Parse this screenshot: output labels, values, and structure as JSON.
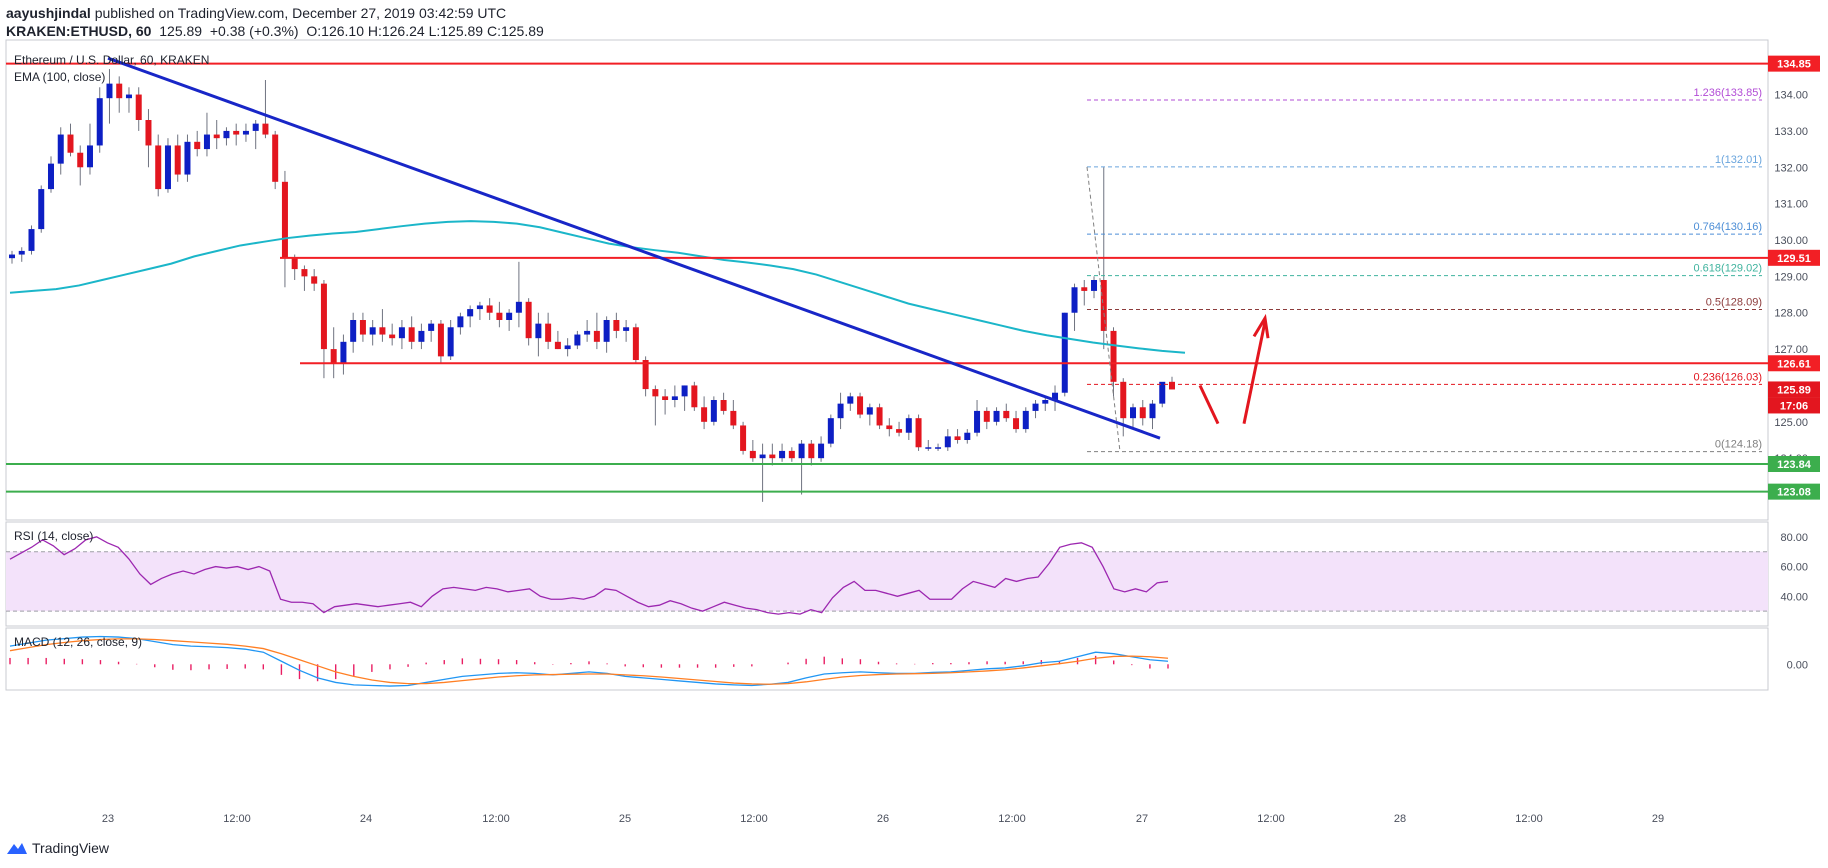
{
  "header": {
    "line1_user": "aayushjindal",
    "line1_rest": " published on TradingView.com, December 27, 2019 03:42:59 UTC",
    "symbol": "KRAKEN:ETHUSD, 60",
    "price": "125.89",
    "change": "+0.38 (+0.3%)",
    "ohlc": "O:126.10 H:126.24 L:125.89 C:125.89"
  },
  "footer": {
    "brand": "TradingView"
  },
  "colors": {
    "up": "#0d1fc4",
    "down": "#e3161f",
    "ema": "#1bb6c9",
    "trend": "#1826c7",
    "hline_red": "#f21f25",
    "hline_green": "#3cae4d",
    "rsi": "#9c27b0",
    "rsi_band": "#f3e2fa",
    "macd": "#2196f3",
    "signal": "#ff7f24",
    "hist": "#e91e63"
  },
  "chart_data": [
    {
      "type": "candlestick",
      "title": "Ethereum / U.S. Dollar, 60, KRAKEN",
      "indicator_label": "EMA (100, close)",
      "ylim": [
        122.3,
        135.5
      ],
      "y_ticks": [
        "134.00",
        "133.00",
        "132.00",
        "131.00",
        "130.00",
        "129.00",
        "128.00",
        "127.00",
        "126.00",
        "125.00",
        "124.00"
      ],
      "x_ticks": [
        "23",
        "12:00",
        "24",
        "12:00",
        "25",
        "12:00",
        "26",
        "12:00",
        "27",
        "12:00",
        "28",
        "12:00",
        "29"
      ],
      "candles": [
        [
          129.5,
          129.7,
          129.35,
          129.6
        ],
        [
          129.6,
          129.8,
          129.4,
          129.7
        ],
        [
          129.7,
          130.4,
          129.6,
          130.3
        ],
        [
          130.3,
          131.5,
          130.2,
          131.4
        ],
        [
          131.4,
          132.3,
          131.3,
          132.1
        ],
        [
          132.1,
          133.1,
          131.8,
          132.9
        ],
        [
          132.9,
          133.2,
          132.3,
          132.4
        ],
        [
          132.4,
          132.6,
          131.5,
          132.0
        ],
        [
          132.0,
          133.2,
          131.8,
          132.6
        ],
        [
          132.6,
          134.2,
          132.4,
          133.9
        ],
        [
          133.9,
          134.7,
          133.2,
          134.3
        ],
        [
          134.3,
          134.5,
          133.5,
          133.9
        ],
        [
          133.9,
          134.2,
          133.5,
          134.0
        ],
        [
          134.0,
          134.2,
          133.0,
          133.3
        ],
        [
          133.3,
          133.6,
          132.0,
          132.6
        ],
        [
          132.6,
          132.9,
          131.2,
          131.4
        ],
        [
          131.4,
          132.8,
          131.3,
          132.6
        ],
        [
          132.6,
          132.9,
          131.6,
          131.8
        ],
        [
          131.8,
          132.9,
          131.6,
          132.7
        ],
        [
          132.7,
          133.0,
          132.3,
          132.5
        ],
        [
          132.5,
          133.5,
          132.3,
          132.9
        ],
        [
          132.9,
          133.3,
          132.5,
          132.8
        ],
        [
          132.8,
          133.1,
          132.6,
          133.0
        ],
        [
          133.0,
          133.2,
          132.6,
          132.9
        ],
        [
          132.9,
          133.2,
          132.7,
          133.0
        ],
        [
          133.0,
          133.3,
          132.5,
          133.2
        ],
        [
          133.2,
          134.4,
          132.8,
          132.9
        ],
        [
          132.9,
          133.0,
          131.4,
          131.6
        ],
        [
          131.6,
          131.9,
          128.7,
          129.5
        ],
        [
          129.5,
          129.6,
          128.9,
          129.2
        ],
        [
          129.2,
          129.3,
          128.6,
          129.0
        ],
        [
          129.0,
          129.2,
          128.6,
          128.8
        ],
        [
          128.8,
          128.9,
          126.2,
          127.0
        ],
        [
          127.0,
          127.6,
          126.2,
          126.6
        ],
        [
          126.6,
          127.4,
          126.3,
          127.2
        ],
        [
          127.2,
          128.0,
          126.9,
          127.8
        ],
        [
          127.8,
          128.0,
          127.2,
          127.4
        ],
        [
          127.4,
          127.8,
          127.1,
          127.6
        ],
        [
          127.6,
          128.1,
          127.2,
          127.4
        ],
        [
          127.4,
          127.7,
          127.1,
          127.3
        ],
        [
          127.3,
          127.8,
          127.0,
          127.6
        ],
        [
          127.6,
          127.9,
          127.0,
          127.2
        ],
        [
          127.2,
          127.7,
          127.0,
          127.5
        ],
        [
          127.5,
          127.8,
          127.2,
          127.7
        ],
        [
          127.7,
          127.8,
          126.6,
          126.8
        ],
        [
          126.8,
          127.8,
          126.7,
          127.6
        ],
        [
          127.6,
          128.0,
          127.4,
          127.9
        ],
        [
          127.9,
          128.2,
          127.6,
          128.1
        ],
        [
          128.1,
          128.3,
          127.8,
          128.2
        ],
        [
          128.2,
          128.4,
          127.8,
          128.0
        ],
        [
          128.0,
          128.3,
          127.6,
          127.8
        ],
        [
          127.8,
          128.1,
          127.5,
          128.0
        ],
        [
          128.0,
          129.4,
          127.6,
          128.3
        ],
        [
          128.3,
          128.4,
          127.1,
          127.3
        ],
        [
          127.3,
          128.0,
          126.8,
          127.7
        ],
        [
          127.7,
          128.0,
          127.0,
          127.2
        ],
        [
          127.2,
          127.5,
          127.0,
          127.0
        ],
        [
          127.0,
          127.3,
          126.8,
          127.1
        ],
        [
          127.1,
          127.5,
          127.0,
          127.4
        ],
        [
          127.4,
          127.8,
          127.2,
          127.5
        ],
        [
          127.5,
          128.0,
          127.0,
          127.2
        ],
        [
          127.2,
          127.9,
          126.9,
          127.8
        ],
        [
          127.8,
          128.0,
          127.3,
          127.5
        ],
        [
          127.5,
          127.8,
          127.2,
          127.6
        ],
        [
          127.6,
          127.7,
          126.6,
          126.7
        ],
        [
          126.7,
          126.8,
          125.7,
          125.9
        ],
        [
          125.9,
          126.0,
          124.9,
          125.7
        ],
        [
          125.7,
          125.9,
          125.2,
          125.6
        ],
        [
          125.6,
          126.0,
          125.4,
          125.7
        ],
        [
          125.7,
          126.0,
          125.3,
          126.0
        ],
        [
          126.0,
          126.1,
          125.3,
          125.4
        ],
        [
          125.4,
          125.7,
          124.8,
          125.0
        ],
        [
          125.0,
          125.7,
          124.9,
          125.6
        ],
        [
          125.6,
          125.8,
          125.2,
          125.3
        ],
        [
          125.3,
          125.6,
          124.8,
          124.9
        ],
        [
          124.9,
          125.0,
          124.1,
          124.2
        ],
        [
          124.2,
          124.5,
          123.9,
          124.0
        ],
        [
          124.0,
          124.4,
          122.8,
          124.1
        ],
        [
          124.1,
          124.4,
          123.8,
          124.0
        ],
        [
          124.0,
          124.4,
          123.9,
          124.2
        ],
        [
          124.2,
          124.3,
          123.9,
          124.0
        ],
        [
          124.0,
          124.5,
          123.0,
          124.4
        ],
        [
          124.4,
          124.5,
          123.8,
          124.0
        ],
        [
          124.0,
          124.6,
          123.9,
          124.4
        ],
        [
          124.4,
          125.2,
          124.3,
          125.1
        ],
        [
          125.1,
          125.8,
          124.8,
          125.5
        ],
        [
          125.5,
          125.8,
          125.3,
          125.7
        ],
        [
          125.7,
          125.8,
          125.1,
          125.2
        ],
        [
          125.2,
          125.5,
          124.9,
          125.4
        ],
        [
          125.4,
          125.5,
          124.8,
          124.9
        ],
        [
          124.9,
          125.1,
          124.6,
          124.8
        ],
        [
          124.8,
          125.0,
          124.6,
          124.7
        ],
        [
          124.7,
          125.2,
          124.5,
          125.1
        ],
        [
          125.1,
          125.2,
          124.2,
          124.3
        ],
        [
          124.3,
          124.5,
          124.2,
          124.3
        ],
        [
          124.3,
          124.4,
          124.2,
          124.3
        ],
        [
          124.3,
          124.8,
          124.2,
          124.6
        ],
        [
          124.6,
          124.8,
          124.4,
          124.5
        ],
        [
          124.5,
          124.8,
          124.4,
          124.7
        ],
        [
          124.7,
          125.6,
          124.6,
          125.3
        ],
        [
          125.3,
          125.4,
          124.8,
          125.0
        ],
        [
          125.0,
          125.4,
          124.9,
          125.3
        ],
        [
          125.3,
          125.5,
          125.0,
          125.1
        ],
        [
          125.1,
          125.3,
          124.7,
          124.8
        ],
        [
          124.8,
          125.4,
          124.7,
          125.3
        ],
        [
          125.3,
          125.6,
          125.1,
          125.5
        ],
        [
          125.5,
          125.7,
          125.3,
          125.6
        ],
        [
          125.6,
          126.0,
          125.3,
          125.8
        ],
        [
          125.8,
          128.0,
          125.7,
          128.0
        ],
        [
          128.0,
          128.8,
          127.5,
          128.7
        ],
        [
          128.7,
          128.9,
          128.2,
          128.6
        ],
        [
          128.6,
          129.0,
          128.4,
          128.9
        ],
        [
          128.9,
          132.0,
          127.0,
          127.5
        ],
        [
          127.5,
          127.6,
          125.7,
          126.1
        ],
        [
          126.1,
          126.2,
          124.6,
          125.1
        ],
        [
          125.1,
          125.5,
          124.8,
          125.4
        ],
        [
          125.4,
          125.6,
          124.9,
          125.1
        ],
        [
          125.1,
          125.6,
          124.8,
          125.5
        ],
        [
          125.5,
          126.0,
          125.4,
          126.1
        ],
        [
          126.1,
          126.24,
          125.89,
          125.89
        ]
      ],
      "ema": [
        128.55,
        128.6,
        128.65,
        128.75,
        128.9,
        129.05,
        129.2,
        129.35,
        129.55,
        129.7,
        129.85,
        129.95,
        130.05,
        130.12,
        130.18,
        130.22,
        130.3,
        130.38,
        130.45,
        130.5,
        130.52,
        130.5,
        130.45,
        130.35,
        130.2,
        130.05,
        129.9,
        129.8,
        129.72,
        129.65,
        129.55,
        129.45,
        129.38,
        129.3,
        129.2,
        129.05,
        128.85,
        128.65,
        128.45,
        128.25,
        128.1,
        127.95,
        127.8,
        127.65,
        127.5,
        127.38,
        127.28,
        127.18,
        127.1,
        127.02,
        126.95,
        126.9
      ],
      "h_levels_red": [
        "134.85",
        "129.51",
        "126.61"
      ],
      "h_levels_green": [
        "123.84",
        "123.08"
      ],
      "fib_levels": [
        {
          "label": "1.236(133.85)",
          "value": 133.85
        },
        {
          "label": "1(132.01)",
          "value": 132.01
        },
        {
          "label": "0.764(130.16)",
          "value": 130.16
        },
        {
          "label": "0.618(129.02)",
          "value": 129.02
        },
        {
          "label": "0.5(128.09)",
          "value": 128.09
        },
        {
          "label": "0.236(126.03)",
          "value": 126.03
        },
        {
          "label": "0(124.18)",
          "value": 124.18
        }
      ],
      "price_labels": [
        {
          "text": "134.85",
          "value": 134.85,
          "color": "#f21f25"
        },
        {
          "text": "129.51",
          "value": 129.51,
          "color": "#f21f25"
        },
        {
          "text": "126.61",
          "value": 126.61,
          "color": "#f21f25"
        },
        {
          "text": "125.89",
          "value": 125.89,
          "color": "#e3161f"
        },
        {
          "text": "17:06",
          "value": 125.45,
          "color": "#e3161f"
        },
        {
          "text": "123.84",
          "value": 123.84,
          "color": "#3cae4d"
        },
        {
          "text": "123.08",
          "value": 123.08,
          "color": "#3cae4d"
        }
      ]
    },
    {
      "type": "line",
      "title": "RSI (14, close)",
      "ylim": [
        20,
        90
      ],
      "y_ticks": [
        "80.00",
        "60.00",
        "40.00"
      ],
      "band": [
        30,
        70
      ],
      "values": [
        65,
        69,
        73,
        78,
        74,
        68,
        72,
        78,
        80,
        76,
        73,
        65,
        55,
        48,
        52,
        55,
        57,
        55,
        58,
        60,
        59,
        60,
        58,
        60,
        57,
        38,
        36,
        36,
        35,
        29,
        33,
        34,
        35,
        34,
        33,
        34,
        35,
        36,
        33,
        40,
        45,
        46,
        45,
        44,
        46,
        45,
        43,
        44,
        45,
        40,
        38,
        38,
        39,
        38,
        40,
        45,
        44,
        40,
        36,
        33,
        34,
        37,
        35,
        32,
        30,
        33,
        36,
        34,
        32,
        31,
        29,
        28,
        29,
        28,
        31,
        29,
        39,
        46,
        50,
        44,
        44,
        42,
        40,
        42,
        44,
        38,
        38,
        38,
        45,
        50,
        48,
        46,
        52,
        50,
        52,
        53,
        62,
        73,
        75,
        76,
        73,
        60,
        45,
        43,
        45,
        43,
        49,
        50
      ]
    },
    {
      "type": "line",
      "title": "MACD (12, 26, close, 9)",
      "ylim": [
        -0.85,
        1.2
      ],
      "y_ticks": [
        "0.00"
      ],
      "macd": [
        0.6,
        0.7,
        0.8,
        0.85,
        0.9,
        0.92,
        0.9,
        0.85,
        0.75,
        0.65,
        0.6,
        0.58,
        0.55,
        0.5,
        0.4,
        0.1,
        -0.2,
        -0.45,
        -0.6,
        -0.68,
        -0.7,
        -0.72,
        -0.7,
        -0.6,
        -0.5,
        -0.4,
        -0.35,
        -0.3,
        -0.28,
        -0.3,
        -0.35,
        -0.3,
        -0.25,
        -0.3,
        -0.4,
        -0.45,
        -0.5,
        -0.55,
        -0.6,
        -0.65,
        -0.68,
        -0.7,
        -0.66,
        -0.6,
        -0.45,
        -0.32,
        -0.28,
        -0.25,
        -0.28,
        -0.3,
        -0.3,
        -0.27,
        -0.25,
        -0.2,
        -0.15,
        -0.12,
        -0.05,
        0.05,
        0.1,
        0.25,
        0.4,
        0.35,
        0.25,
        0.15,
        0.1
      ],
      "signal": [
        0.45,
        0.55,
        0.65,
        0.72,
        0.78,
        0.82,
        0.84,
        0.84,
        0.82,
        0.78,
        0.74,
        0.7,
        0.66,
        0.6,
        0.52,
        0.35,
        0.15,
        -0.05,
        -0.25,
        -0.4,
        -0.52,
        -0.6,
        -0.64,
        -0.64,
        -0.6,
        -0.54,
        -0.48,
        -0.42,
        -0.38,
        -0.35,
        -0.34,
        -0.33,
        -0.32,
        -0.32,
        -0.35,
        -0.38,
        -0.42,
        -0.47,
        -0.52,
        -0.57,
        -0.62,
        -0.65,
        -0.66,
        -0.64,
        -0.58,
        -0.5,
        -0.42,
        -0.37,
        -0.34,
        -0.32,
        -0.31,
        -0.3,
        -0.28,
        -0.25,
        -0.22,
        -0.18,
        -0.12,
        -0.05,
        0.02,
        0.1,
        0.2,
        0.26,
        0.27,
        0.25,
        0.2
      ]
    }
  ]
}
